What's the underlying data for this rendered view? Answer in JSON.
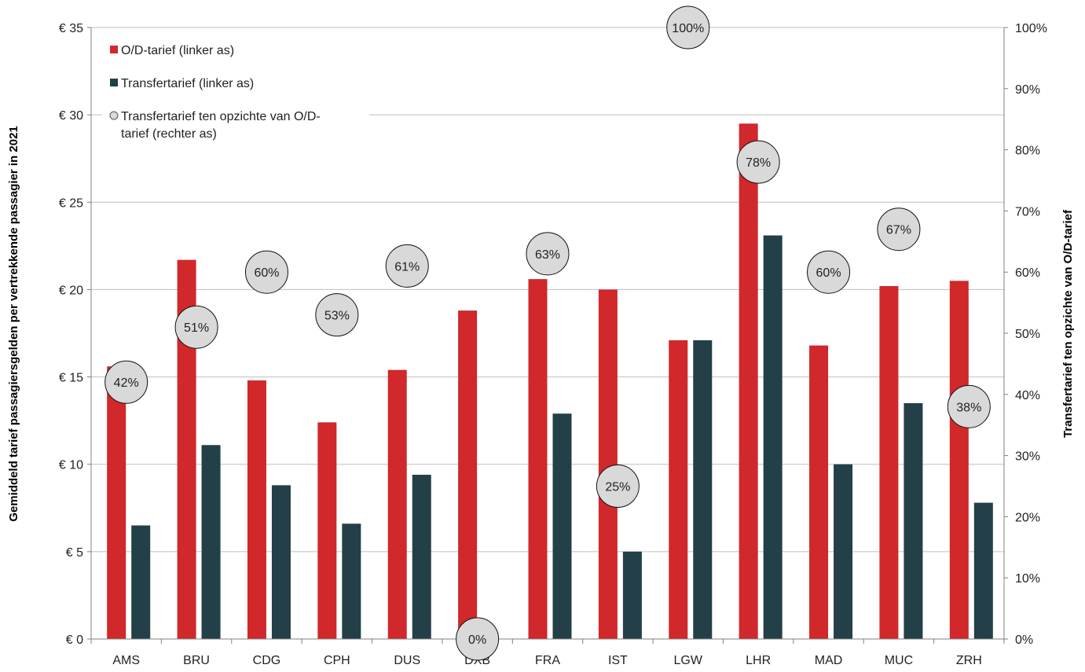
{
  "chart_data": {
    "type": "bar",
    "categories": [
      "AMS",
      "BRU",
      "CDG",
      "CPH",
      "DUS",
      "DXB",
      "FRA",
      "IST",
      "LGW",
      "LHR",
      "MAD",
      "MUC",
      "ZRH"
    ],
    "series": [
      {
        "name": "O/D-tarief (linker as)",
        "color": "#d0282b",
        "axis": "left",
        "values": [
          15.6,
          21.7,
          14.8,
          12.4,
          15.4,
          18.8,
          20.6,
          20.0,
          17.1,
          29.5,
          16.8,
          20.2,
          20.5
        ]
      },
      {
        "name": "Transfertarief (linker as)",
        "color": "#233f47",
        "axis": "left",
        "values": [
          6.5,
          11.1,
          8.8,
          6.6,
          9.4,
          0,
          12.9,
          5.0,
          17.1,
          23.1,
          10.0,
          13.5,
          7.8
        ]
      },
      {
        "name": "Transfertarief ten opzichte van O/D-tarief (rechter as)",
        "type": "scatter",
        "color": "#d9d9d9",
        "axis": "right",
        "values": [
          42,
          51,
          60,
          53,
          61,
          0,
          63,
          25,
          100,
          78,
          60,
          67,
          38
        ],
        "labels": [
          "42%",
          "51%",
          "60%",
          "53%",
          "61%",
          "0%",
          "63%",
          "25%",
          "100%",
          "78%",
          "60%",
          "67%",
          "38%"
        ]
      }
    ],
    "legend_lines": [
      [
        "O/D-tarief (linker as)"
      ],
      [
        "Transfertarief (linker as)"
      ],
      [
        "Transfertarief ten opzichte van O/D-",
        "tarief (rechter as)"
      ]
    ],
    "ylabel": "Gemiddeld tarief passagiersgelden per vertrekkende passagier in 2021",
    "y2label": "Transfertarief ten opzichte van O/D-tarief",
    "ylim": [
      0,
      35
    ],
    "y2lim": [
      0,
      100
    ],
    "yticks": [
      0,
      5,
      10,
      15,
      20,
      25,
      30,
      35
    ],
    "ytick_labels": [
      "€ 0",
      "€ 5",
      "€ 10",
      "€ 15",
      "€ 20",
      "€ 25",
      "€ 30",
      "€ 35"
    ],
    "y2ticks": [
      0,
      10,
      20,
      30,
      40,
      50,
      60,
      70,
      80,
      90,
      100
    ],
    "y2tick_labels": [
      "0%",
      "10%",
      "20%",
      "30%",
      "40%",
      "50%",
      "60%",
      "70%",
      "80%",
      "90%",
      "100%"
    ],
    "grid": true,
    "legend_position": "top-left"
  }
}
